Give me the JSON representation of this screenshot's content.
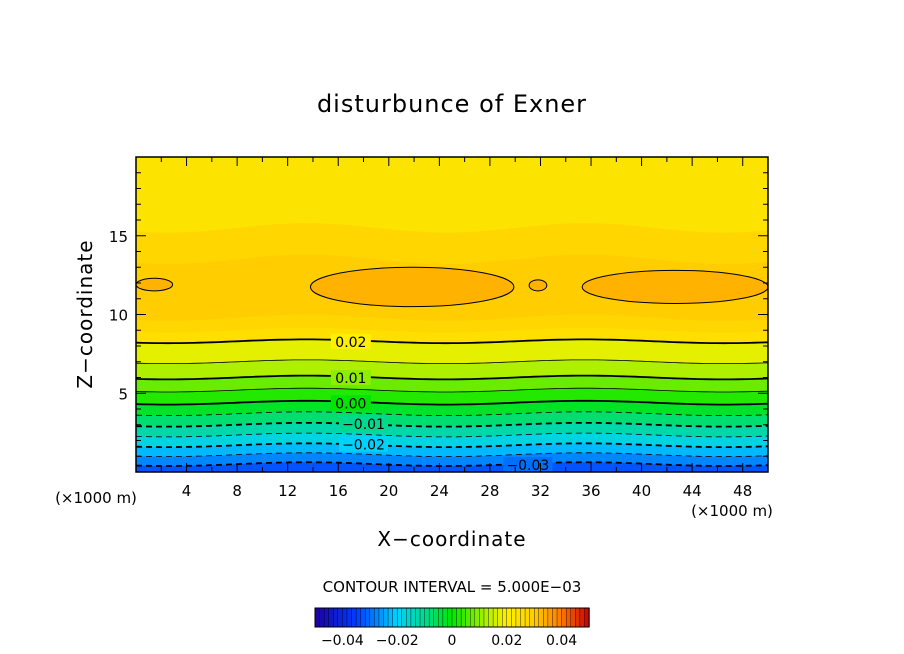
{
  "chart_data": {
    "type": "contour",
    "title": "disturbunce of Exner",
    "xlabel": "X−coordinate",
    "ylabel": "Z−coordinate",
    "x_unit": "(×1000 m)",
    "y_unit": "(×1000 m)",
    "xlim": [
      0,
      50
    ],
    "ylim": [
      0,
      20
    ],
    "x_ticks": [
      "4",
      "8",
      "12",
      "16",
      "20",
      "24",
      "28",
      "32",
      "36",
      "40",
      "44",
      "48"
    ],
    "y_ticks": [
      "5",
      "10",
      "15"
    ],
    "contour_interval_text": "CONTOUR INTERVAL = 5.000E−03",
    "contour_labels": [
      {
        "text": "0.02",
        "x": 17,
        "y": 8.2
      },
      {
        "text": "0.01",
        "x": 17,
        "y": 5.9
      },
      {
        "text": "0.00",
        "x": 17,
        "y": 4.3
      },
      {
        "text": "−0.01",
        "x": 18,
        "y": 3.0
      },
      {
        "text": "−0.02",
        "x": 18,
        "y": 1.7
      },
      {
        "text": "−0.03",
        "x": 31,
        "y": 0.4
      }
    ],
    "contour_levels": [
      {
        "value": 0.02,
        "z": 8.3
      },
      {
        "value": 0.015,
        "z": 7.0
      },
      {
        "value": 0.01,
        "z": 6.0
      },
      {
        "value": 0.005,
        "z": 5.2
      },
      {
        "value": 0.0,
        "z": 4.4
      },
      {
        "value": -0.005,
        "z": 3.7
      },
      {
        "value": -0.01,
        "z": 3.0
      },
      {
        "value": -0.015,
        "z": 2.35
      },
      {
        "value": -0.02,
        "z": 1.7
      },
      {
        "value": -0.025,
        "z": 1.1
      },
      {
        "value": -0.03,
        "z": 0.5
      }
    ],
    "high_regions": [
      {
        "x": [
          0.0,
          2.9
        ],
        "z": [
          11.5,
          12.3
        ]
      },
      {
        "x": [
          13.8,
          29.9
        ],
        "z": [
          10.5,
          13.0
        ]
      },
      {
        "x": [
          31.1,
          32.5
        ],
        "z": [
          11.5,
          12.2
        ]
      },
      {
        "x": [
          35.3,
          50.0
        ],
        "z": [
          10.7,
          12.8
        ]
      }
    ],
    "colorbar": {
      "ticks": [
        "−0.04",
        "−0.02",
        "0",
        "0.02",
        "0.04"
      ],
      "range": [
        -0.05,
        0.05
      ]
    }
  }
}
